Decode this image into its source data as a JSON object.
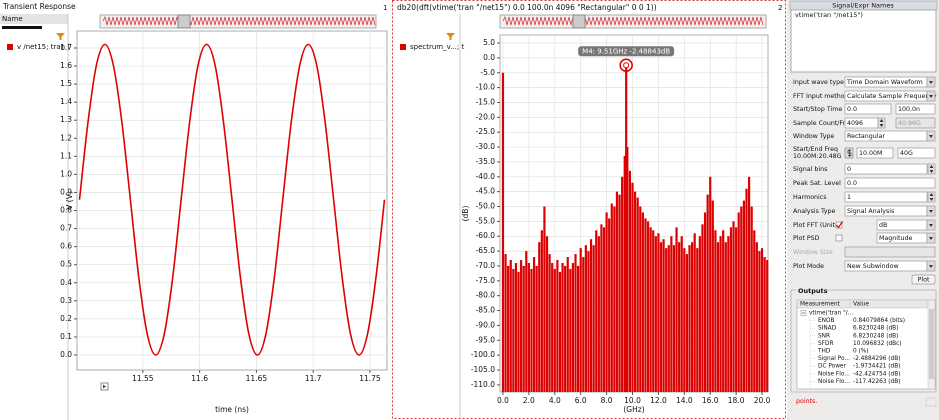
{
  "chart_data": [
    {
      "type": "line",
      "title": "Transient Response",
      "x_label": "time (ns)",
      "y_label": "V (V)",
      "grid": true,
      "x": [
        11.4942,
        11.5017,
        11.5091,
        11.5166,
        11.524,
        11.5315,
        11.539,
        11.5464,
        11.5539,
        11.5613,
        11.5688,
        11.5763,
        11.5837,
        11.5912,
        11.5986,
        11.6061,
        11.6136,
        11.621,
        11.6285,
        11.6359,
        11.6434,
        11.6509,
        11.6583,
        11.6658,
        11.6732,
        11.6807,
        11.6882,
        11.6956,
        11.7031,
        11.7105,
        11.718,
        11.7255,
        11.7329,
        11.7404,
        11.7478,
        11.7553,
        11.7628
      ],
      "series": [
        {
          "name": "v /net15; tran (",
          "color": "#e00000",
          "values": [
            0.86,
            1.29,
            1.605,
            1.72,
            1.605,
            1.29,
            0.86,
            0.43,
            0.115,
            0,
            0.115,
            0.43,
            0.86,
            1.29,
            1.605,
            1.72,
            1.605,
            1.29,
            0.86,
            0.43,
            0.115,
            0,
            0.115,
            0.43,
            0.86,
            1.29,
            1.605,
            1.72,
            1.605,
            1.29,
            0.86,
            0.43,
            0.115,
            0,
            0.115,
            0.43,
            0.86
          ]
        }
      ],
      "xlim": [
        11.492,
        11.765
      ],
      "xticks": [
        11.55,
        11.6,
        11.65,
        11.7,
        11.75
      ],
      "ylim": [
        -0.083,
        1.794
      ],
      "yticks": [
        {
          "value": 0,
          "label": "0.0"
        },
        0.1,
        0.2,
        0.3,
        0.4,
        0.5,
        0.6,
        0.7,
        0.8,
        0.9,
        {
          "value": 1,
          "label": "1.0"
        },
        1.1,
        1.2,
        1.3,
        1.4,
        1.5,
        1.6,
        1.7
      ]
    },
    {
      "type": "bar",
      "title": "db20(dft(vtime('tran \"/net15\")  0.0 100.0n 4096 \"Rectangular\" 0 0 1))",
      "x_label": "(GHz)",
      "y_label": "(dB)",
      "grid": true,
      "x": [
        0.0,
        0.2,
        0.4,
        0.6,
        0.8,
        1.0,
        1.2,
        1.4,
        1.6,
        1.8,
        2.0,
        2.2,
        2.4,
        2.6,
        2.8,
        3.0,
        3.2,
        3.4,
        3.6,
        3.8,
        4.0,
        4.2,
        4.4,
        4.6,
        4.8,
        5.0,
        5.2,
        5.4,
        5.6,
        5.8,
        6.0,
        6.2,
        6.4,
        6.6,
        6.8,
        7.0,
        7.2,
        7.4,
        7.6,
        7.8,
        8.0,
        8.2,
        8.4,
        8.6,
        8.8,
        9.0,
        9.2,
        9.4,
        9.51,
        9.6,
        9.8,
        10.0,
        10.2,
        10.4,
        10.6,
        10.8,
        11.0,
        11.2,
        11.4,
        11.6,
        11.8,
        12.0,
        12.2,
        12.4,
        12.6,
        12.8,
        13.0,
        13.2,
        13.4,
        13.6,
        13.8,
        14.0,
        14.2,
        14.4,
        14.6,
        14.8,
        15.0,
        15.2,
        15.4,
        15.6,
        15.8,
        16.0,
        16.2,
        16.4,
        16.6,
        16.8,
        17.0,
        17.2,
        17.4,
        17.6,
        17.8,
        18.0,
        18.2,
        18.4,
        18.6,
        18.8,
        19.0,
        19.2,
        19.4,
        19.6,
        19.8,
        20.0,
        20.2,
        20.4
      ],
      "series": [
        {
          "name": "spectrum_v...; t",
          "color": "#dd0000",
          "values": [
            -5,
            -66,
            -70,
            -68,
            -71,
            -69,
            -72,
            -68,
            -70,
            -65,
            -69,
            -71,
            -67,
            -70,
            -62,
            -58,
            -50,
            -60,
            -66,
            -69,
            -71,
            -68,
            -72,
            -69,
            -70,
            -67,
            -71,
            -69,
            -66,
            -70,
            -64,
            -67,
            -63,
            -65,
            -61,
            -63,
            -58,
            -60,
            -56,
            -57,
            -52,
            -54,
            -49,
            -50,
            -45,
            -46,
            -40,
            -33,
            -2.48843,
            -30,
            -38,
            -42,
            -45,
            -47,
            -50,
            -52,
            -54,
            -55,
            -57,
            -58,
            -60,
            -59,
            -62,
            -61,
            -64,
            -63,
            -60,
            -63,
            -57,
            -62,
            -60,
            -64,
            -66,
            -63,
            -62,
            -59,
            -64,
            -60,
            -56,
            -52,
            -46,
            -40,
            -48,
            -58,
            -62,
            -60,
            -58,
            -62,
            -60,
            -57,
            -55,
            -57,
            -52,
            -50,
            -48,
            -44,
            -40,
            -50,
            -58,
            -62,
            -65,
            -64,
            -67,
            -68
          ]
        }
      ],
      "marker": {
        "label": "M4: 9.51GHz -2.48843dB",
        "x": 9.51,
        "y": -2.48843
      },
      "xlim": [
        -0.23,
        20.46
      ],
      "xticks": [
        {
          "value": 0,
          "label": "0.0"
        },
        {
          "value": 2,
          "label": "2.0"
        },
        {
          "value": 4,
          "label": "4.0"
        },
        {
          "value": 6,
          "label": "6.0"
        },
        {
          "value": 8,
          "label": "8.0"
        },
        {
          "value": 10,
          "label": "10.0"
        },
        {
          "value": 12,
          "label": "12.0"
        },
        {
          "value": 14,
          "label": "14.0"
        },
        {
          "value": 16,
          "label": "16.0"
        },
        {
          "value": 18,
          "label": "18.0"
        },
        {
          "value": 20,
          "label": "20.0"
        }
      ],
      "ylim": [
        -112.4,
        7.7
      ],
      "yticks": [
        {
          "value": 5,
          "label": "5.0"
        },
        {
          "value": 0,
          "label": "0.0"
        },
        {
          "value": -5,
          "label": "-5.0"
        },
        {
          "value": -10,
          "label": "-10.0"
        },
        {
          "value": -15,
          "label": "-15.0"
        },
        {
          "value": -20,
          "label": "-20.0"
        },
        {
          "value": -25,
          "label": "-25.0"
        },
        {
          "value": -30,
          "label": "-30.0"
        },
        {
          "value": -35,
          "label": "-35.0"
        },
        {
          "value": -40,
          "label": "-40.0"
        },
        {
          "value": -45,
          "label": "-45.0"
        },
        {
          "value": -50,
          "label": "-50.0"
        },
        {
          "value": -55,
          "label": "-55.0"
        },
        {
          "value": -60,
          "label": "-60.0"
        },
        {
          "value": -65,
          "label": "-65.0"
        },
        {
          "value": -70,
          "label": "-70.0"
        },
        {
          "value": -75,
          "label": "-75.0"
        },
        {
          "value": -80,
          "label": "-80.0"
        },
        {
          "value": -85,
          "label": "-85.0"
        },
        {
          "value": -90,
          "label": "-90.0"
        },
        {
          "value": -95,
          "label": "-95.0"
        },
        {
          "value": -100,
          "label": "-100.0"
        },
        {
          "value": -105,
          "label": "-105.0"
        },
        {
          "value": -110,
          "label": "-110.0"
        }
      ]
    }
  ],
  "ui": {
    "legend_header": "Name",
    "subwindow_numbers": [
      "1",
      "2"
    ]
  },
  "fft_panel": {
    "header": "Signal/Expr Names",
    "signal": "vtime('tran \"/net15\")",
    "fields": [
      {
        "label": "Input wave type",
        "value": "Time Domain Waveform"
      },
      {
        "label": "FFT Input method",
        "value": "Calculate Sample Frequency"
      },
      {
        "label": "Start/Stop Time",
        "value": "0.0",
        "value2": "100.0n"
      },
      {
        "label": "Sample Count/Freq",
        "value": "4096",
        "value2": "40.96G"
      },
      {
        "label": "Window Type",
        "value": "Rectangular"
      },
      {
        "label": "Start/End Freq",
        "label2": "10.00M:20.48G",
        "value": "10.00M",
        "value2": "40G"
      },
      {
        "label": "Signal bins",
        "value": "0"
      },
      {
        "label": "Peak Sat. Level",
        "value": "0.0"
      },
      {
        "label": "Harmonics",
        "value": "1"
      },
      {
        "label": "Analysis Type",
        "value": "Signal Analysis"
      },
      {
        "label": "Plot FFT (Units)",
        "value": "dB",
        "checked": true
      },
      {
        "label": "Plot PSD",
        "value": "Magnitude",
        "checked": false
      },
      {
        "label": "Window Size"
      },
      {
        "label": "Plot Mode",
        "value": "New Subwindow"
      }
    ],
    "plot_button": "Plot",
    "outputs": {
      "title": "Outputs",
      "columns": [
        "Measurement",
        "Value"
      ],
      "rows": [
        [
          "vtime('tran \"/..."
        ],
        [
          "ENOB",
          "0.84079864 (bits)"
        ],
        [
          "SINAD",
          "6.8230248 (dB)"
        ],
        [
          "SNR",
          "6.8230248 (dB)"
        ],
        [
          "SFDR",
          "10.096832 (dBc)"
        ],
        [
          "THD",
          "0 (%)"
        ],
        [
          "Signal Po...",
          "-2.4884296 (dB)"
        ],
        [
          "DC Power",
          "-1.9734421 (dB)"
        ],
        [
          "Noise Flo...",
          "-42.424754 (dB)"
        ],
        [
          "Noise Flo...",
          "-117.42263 (dB)"
        ]
      ]
    },
    "status": "points."
  }
}
